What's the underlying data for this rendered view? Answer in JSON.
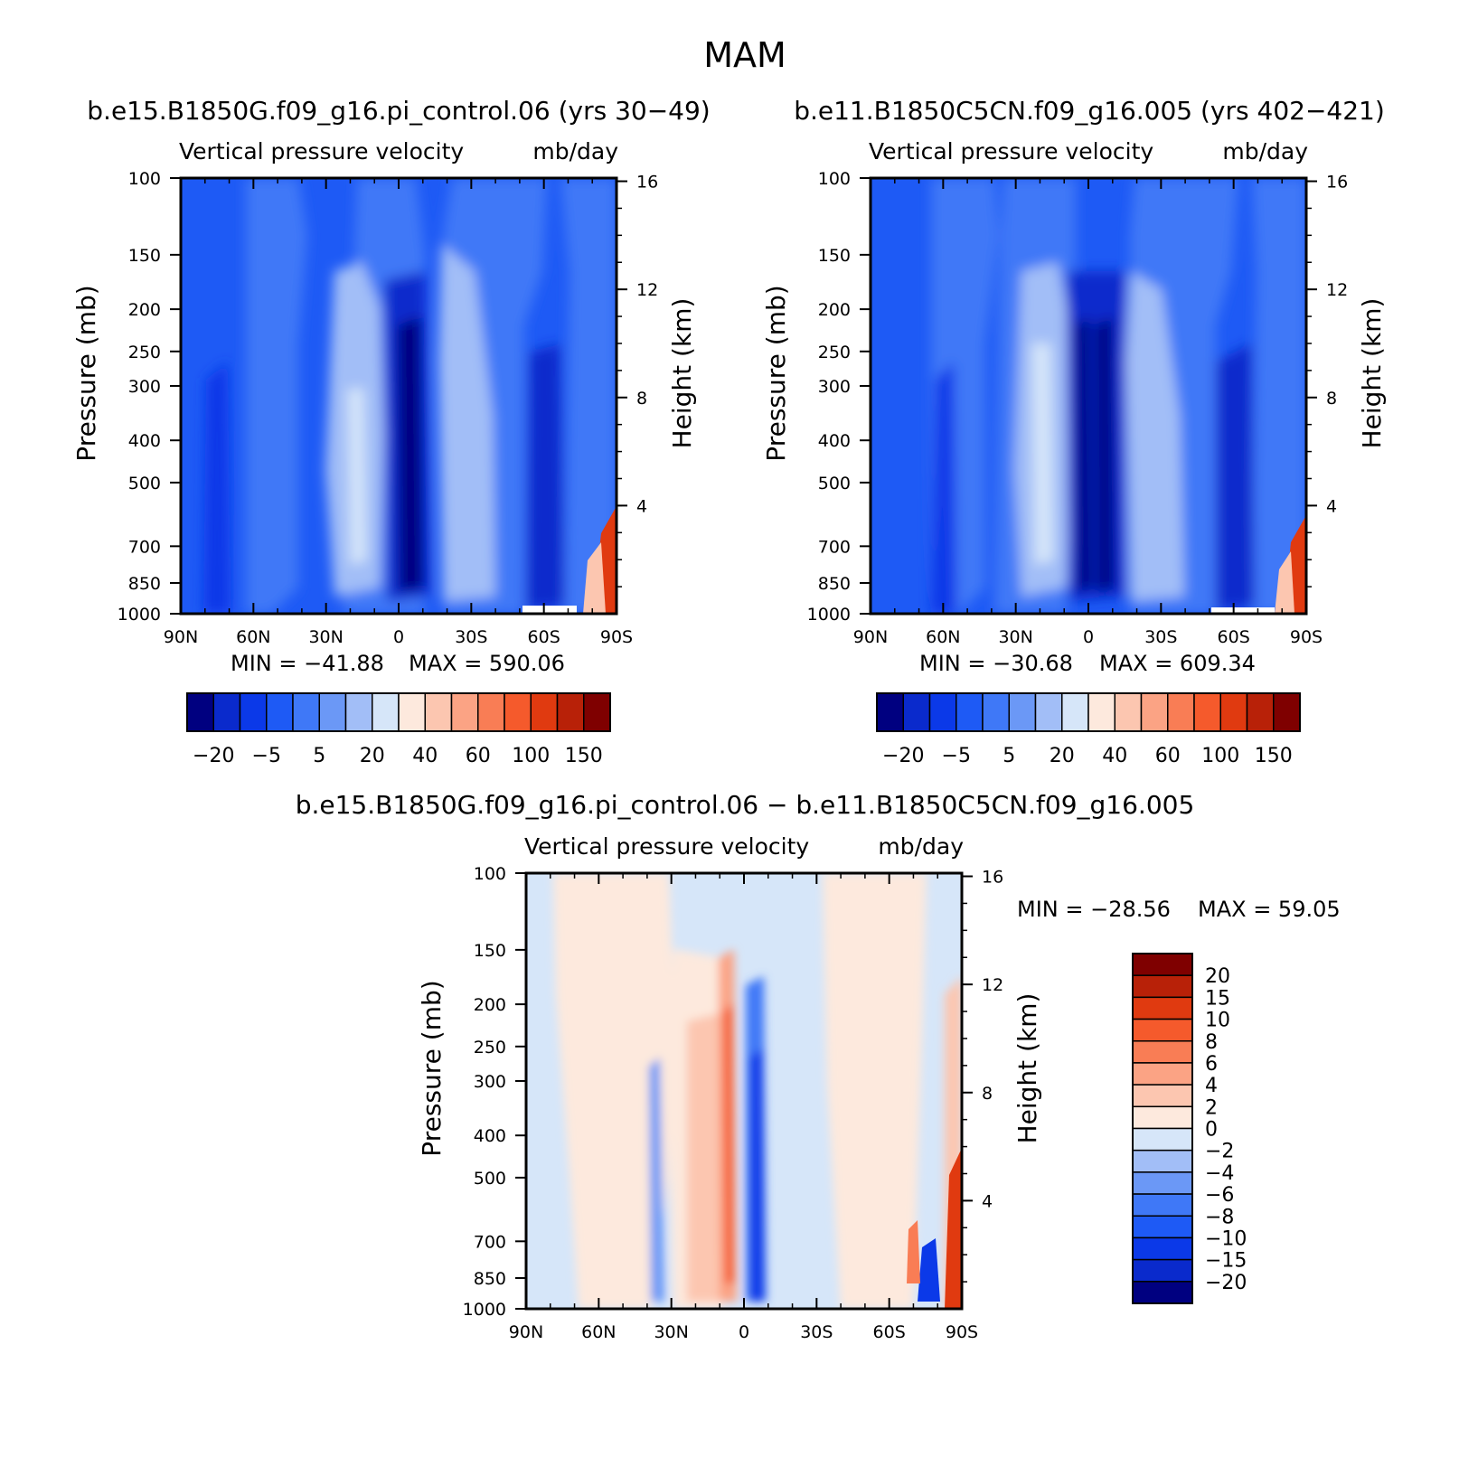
{
  "figure": {
    "title": "MAM"
  },
  "colors": {
    "panel_scale": [
      "#000080",
      "#0a2acc",
      "#0b39e8",
      "#1e5af5",
      "#3f78f7",
      "#6b98f6",
      "#a2bef7",
      "#d6e6f9",
      "#fde9dd",
      "#fcc6b0",
      "#fba384",
      "#f97d55",
      "#f55a2c",
      "#e03a10",
      "#b82108",
      "#7f0000"
    ],
    "diff_scale": [
      "#000080",
      "#0a2acc",
      "#0b39e8",
      "#1e5af5",
      "#3f78f7",
      "#6b98f6",
      "#a2bef7",
      "#d6e6f9",
      "#fde9dd",
      "#fcc6b0",
      "#fba384",
      "#f97d55",
      "#f55a2c",
      "#e03a10",
      "#b82108",
      "#7f0000"
    ]
  },
  "chart_data": [
    {
      "type": "heatmap",
      "title": "b.e15.B1850G.f09_g16.pi_control.06 (yrs 30−49)",
      "subtitle_left": "Vertical pressure velocity",
      "subtitle_right": "mb/day",
      "ylabel": "Pressure (mb)",
      "ylabel_right": "Height (km)",
      "x_ticks": [
        "90N",
        "60N",
        "30N",
        "0",
        "30S",
        "60S",
        "90S"
      ],
      "y_ticks": [
        "100",
        "150",
        "200",
        "250",
        "300",
        "400",
        "500",
        "700",
        "850",
        "1000"
      ],
      "y_right_ticks": [
        "16",
        "12",
        "8",
        "4"
      ],
      "min_text": "MIN  =  −41.88",
      "max_text": "MAX  =  590.06",
      "min": -41.88,
      "max": 590.06,
      "colorbar_labels": [
        "−20",
        "−5",
        "5",
        "20",
        "40",
        "60",
        "100",
        "150"
      ]
    },
    {
      "type": "heatmap",
      "title": "b.e11.B1850C5CN.f09_g16.005 (yrs 402−421)",
      "subtitle_left": "Vertical pressure velocity",
      "subtitle_right": "mb/day",
      "ylabel": "Pressure (mb)",
      "ylabel_right": "Height (km)",
      "x_ticks": [
        "90N",
        "60N",
        "30N",
        "0",
        "30S",
        "60S",
        "90S"
      ],
      "y_ticks": [
        "100",
        "150",
        "200",
        "250",
        "300",
        "400",
        "500",
        "700",
        "850",
        "1000"
      ],
      "y_right_ticks": [
        "16",
        "12",
        "8",
        "4"
      ],
      "min_text": "MIN  =  −30.68",
      "max_text": "MAX  =  609.34",
      "min": -30.68,
      "max": 609.34,
      "colorbar_labels": [
        "−20",
        "−5",
        "5",
        "20",
        "40",
        "60",
        "100",
        "150"
      ]
    },
    {
      "type": "heatmap",
      "title": "b.e15.B1850G.f09_g16.pi_control.06 − b.e11.B1850C5CN.f09_g16.005",
      "subtitle_left": "Vertical pressure velocity",
      "subtitle_right": "mb/day",
      "ylabel": "Pressure (mb)",
      "ylabel_right": "Height (km)",
      "x_ticks": [
        "90N",
        "60N",
        "30N",
        "0",
        "30S",
        "60S",
        "90S"
      ],
      "y_ticks": [
        "100",
        "150",
        "200",
        "250",
        "300",
        "400",
        "500",
        "700",
        "850",
        "1000"
      ],
      "y_right_ticks": [
        "16",
        "12",
        "8",
        "4"
      ],
      "min_text": "MIN  =  −28.56",
      "max_text": "MAX  =    59.05",
      "min": -28.56,
      "max": 59.05,
      "colorbar_labels": [
        "20",
        "15",
        "10",
        "8",
        "6",
        "4",
        "2",
        "0",
        "−2",
        "−4",
        "−6",
        "−8",
        "−10",
        "−15",
        "−20"
      ]
    }
  ]
}
